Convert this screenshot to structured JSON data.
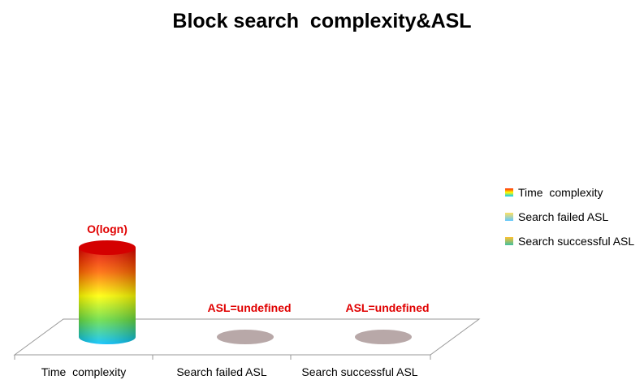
{
  "chart_data": {
    "type": "bar",
    "title": "Block search  complexity&ASL",
    "categories": [
      "Time  complexity",
      "Search failed ASL",
      "Search successful ASL"
    ],
    "series": [
      {
        "name": "Time  complexity",
        "values": [
          1,
          0,
          0
        ],
        "swatch": [
          "#ff2200",
          "#ffff00",
          "#00c8ff"
        ]
      },
      {
        "name": "Search failed ASL",
        "values": [
          0,
          0,
          0
        ],
        "swatch": [
          "#ffe060",
          "#60c8ff"
        ]
      },
      {
        "name": "Search successful ASL",
        "values": [
          0,
          0,
          0
        ],
        "swatch": [
          "#ffc030",
          "#40c0a0"
        ]
      }
    ],
    "data_labels": [
      "O(logn)",
      "ASL=undefined",
      "ASL=undefined"
    ],
    "legend_position": "right",
    "grid": false
  },
  "colors": {
    "label": "#e00000",
    "empty_marker": "#b8a8a8",
    "floor_stroke": "#999999"
  }
}
